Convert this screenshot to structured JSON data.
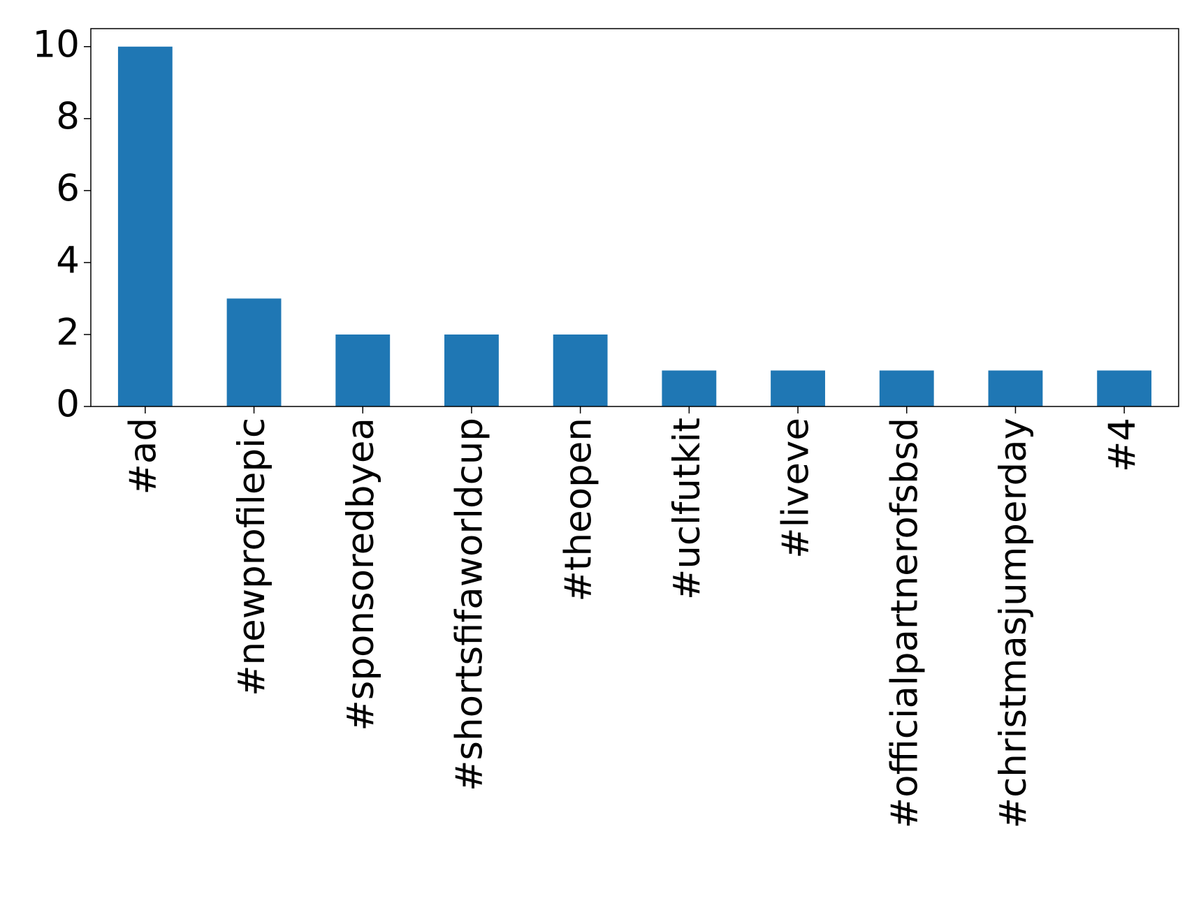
{
  "chart_data": {
    "type": "bar",
    "categories": [
      "#ad",
      "#newprofilepic",
      "#sponsoredbyea",
      "#shortsfifaworldcup",
      "#theopen",
      "#uclfutkit",
      "#liveve",
      "#officialpartnerofsbsd",
      "#christmasjumperday",
      "#4"
    ],
    "values": [
      10,
      3,
      2,
      2,
      2,
      1,
      1,
      1,
      1,
      1
    ],
    "color": "#1f77b4",
    "ylim": [
      0,
      10.5
    ],
    "yticks": [
      0,
      2,
      4,
      6,
      8,
      10
    ],
    "grid": false
  }
}
